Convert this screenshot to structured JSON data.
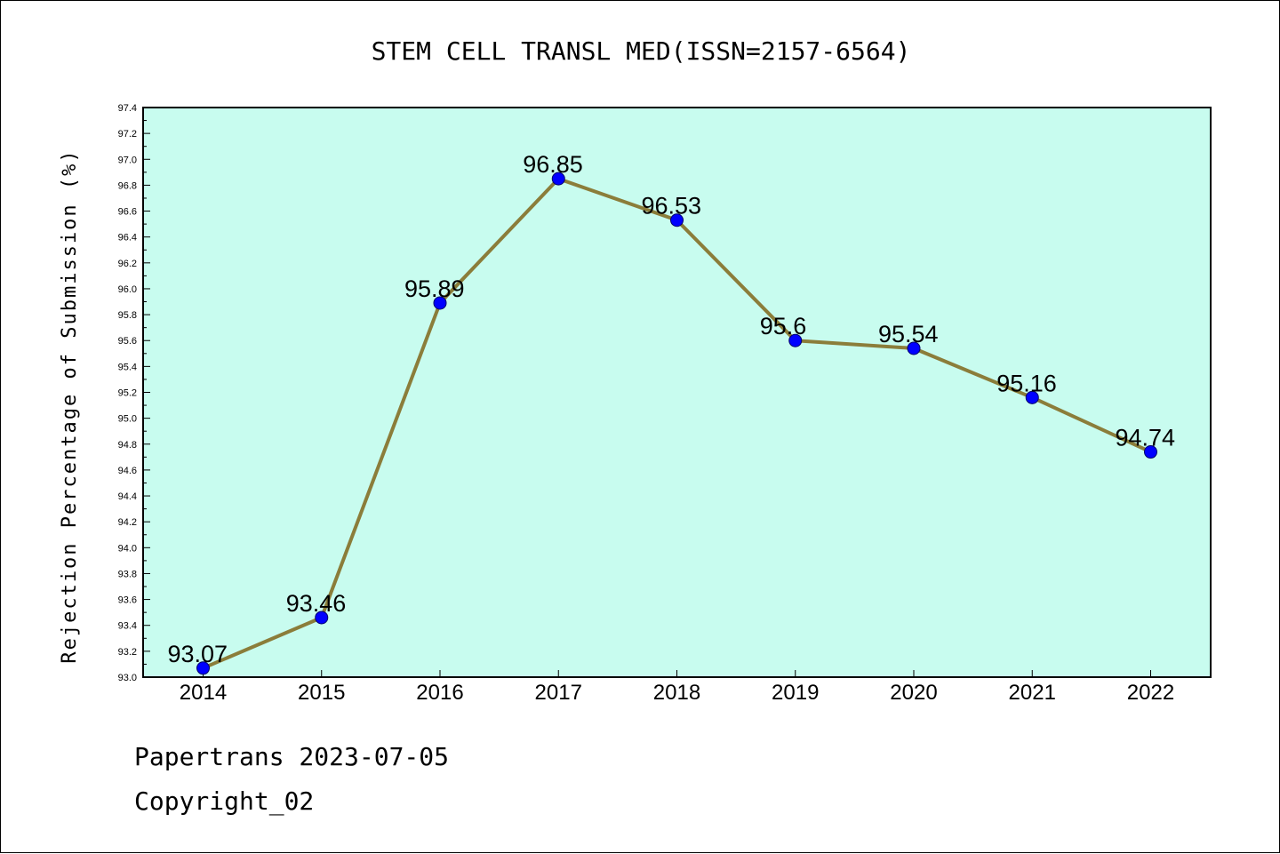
{
  "chart_data": {
    "type": "line",
    "title": "STEM CELL TRANSL MED(ISSN=2157-6564)",
    "xlabel": "",
    "ylabel": "Rejection Percentage of Submission (%)",
    "categories": [
      "2014",
      "2015",
      "2016",
      "2017",
      "2018",
      "2019",
      "2020",
      "2021",
      "2022"
    ],
    "values": [
      93.07,
      93.46,
      95.89,
      96.85,
      96.53,
      95.6,
      95.54,
      95.16,
      94.74
    ],
    "data_labels": [
      "93.07",
      "93.46",
      "95.89",
      "96.85",
      "96.53",
      "95.6",
      "95.54",
      "95.16",
      "94.74"
    ],
    "ylim": [
      93.0,
      97.4
    ],
    "y_ticks": [
      "93.0",
      "93.2",
      "93.4",
      "93.6",
      "93.8",
      "94.0",
      "94.2",
      "94.4",
      "94.6",
      "94.8",
      "95.0",
      "95.2",
      "95.4",
      "95.6",
      "95.8",
      "96.0",
      "96.2",
      "96.4",
      "96.6",
      "96.8",
      "97.0",
      "97.2",
      "97.4"
    ],
    "grid": false,
    "legend": "none",
    "colors": {
      "plot_background": "#c8fcef",
      "line": "#8b7d3a",
      "marker": "#0000ff"
    }
  },
  "footer": {
    "line1": "Papertrans 2023-07-05",
    "line2": "Copyright_02"
  }
}
